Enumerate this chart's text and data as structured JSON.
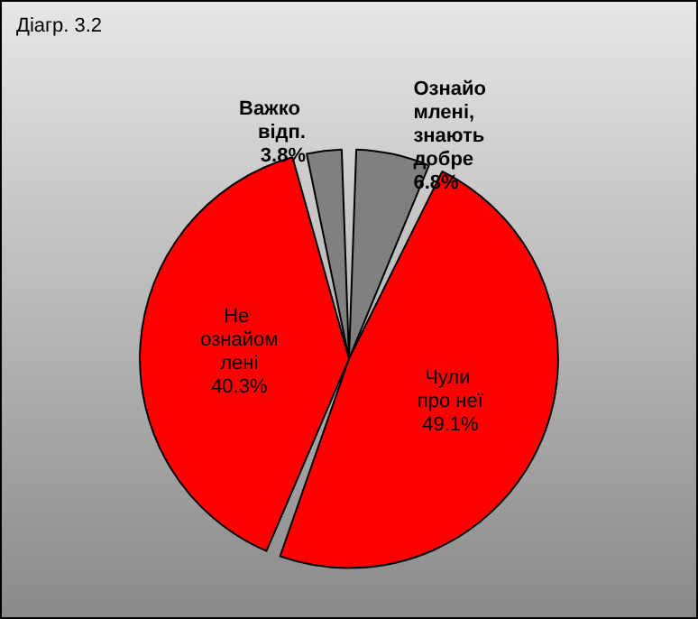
{
  "chart_data": {
    "type": "pie",
    "title": "Діагр. 3.2",
    "categories": [
      "Ознайомлені, знають добре",
      "Чули про неї",
      "Не ознайомлені",
      "Важко відп."
    ],
    "values": [
      6.8,
      49.1,
      40.3,
      3.8
    ],
    "colors": [
      "#808080",
      "#ff0000",
      "#ff0000",
      "#808080"
    ],
    "value_labels": [
      "6.8%",
      "49.1%",
      "40.3%",
      "3.8%"
    ],
    "legend": false
  }
}
